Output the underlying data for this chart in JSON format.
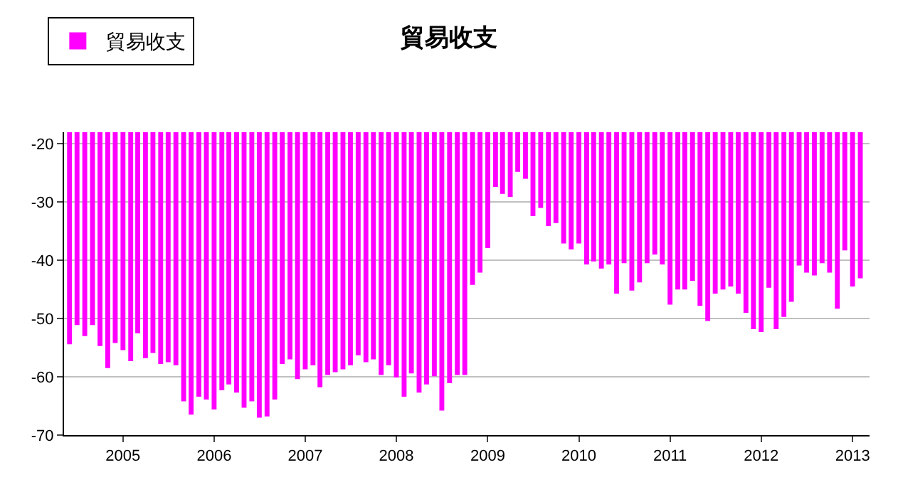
{
  "chart_data": {
    "type": "bar",
    "title": "貿易收支",
    "series": [
      {
        "name": "貿易收支",
        "color": "#ff00ff",
        "values": [
          -54.4,
          -51.1,
          -53.0,
          -51.1,
          -54.7,
          -58.5,
          -54.2,
          -55.4,
          -57.3,
          -52.5,
          -56.8,
          -55.9,
          -57.8,
          -57.5,
          -58.0,
          -64.2,
          -66.5,
          -63.4,
          -63.9,
          -65.6,
          -62.3,
          -61.3,
          -62.7,
          -65.3,
          -64.2,
          -67.0,
          -66.8,
          -63.9,
          -57.8,
          -57.0,
          -60.4,
          -58.7,
          -58.0,
          -61.8,
          -59.7,
          -59.2,
          -58.7,
          -58.0,
          -56.3,
          -57.5,
          -57.0,
          -59.7,
          -58.0,
          -60.1,
          -63.4,
          -59.4,
          -62.7,
          -61.3,
          -59.9,
          -65.8,
          -61.1,
          -59.7,
          -59.7,
          -44.2,
          -42.1,
          -37.9,
          -27.4,
          -28.6,
          -29.1,
          -24.8,
          -26.0,
          -32.4,
          -31.0,
          -34.1,
          -33.6,
          -37.1,
          -38.1,
          -37.1,
          -40.7,
          -40.2,
          -41.4,
          -40.7,
          -45.7,
          -40.5,
          -45.2,
          -43.8,
          -40.5,
          -39.0,
          -40.7,
          -47.6,
          -45.0,
          -45.0,
          -43.5,
          -47.8,
          -50.4,
          -45.7,
          -45.0,
          -44.5,
          -45.7,
          -49.0,
          -51.8,
          -52.3,
          -44.7,
          -51.8,
          -49.7,
          -47.1,
          -40.9,
          -42.1,
          -42.6,
          -40.5,
          -42.1,
          -48.3,
          -38.3,
          -44.5,
          -43.1
        ]
      }
    ],
    "x": [
      "2004-06",
      "2004-07",
      "2004-08",
      "2004-09",
      "2004-10",
      "2004-11",
      "2004-12",
      "2005-01",
      "2005-02",
      "2005-03",
      "2005-04",
      "2005-05",
      "2005-06",
      "2005-07",
      "2005-08",
      "2005-09",
      "2005-10",
      "2005-11",
      "2005-12",
      "2006-01",
      "2006-02",
      "2006-03",
      "2006-04",
      "2006-05",
      "2006-06",
      "2006-07",
      "2006-08",
      "2006-09",
      "2006-10",
      "2006-11",
      "2006-12",
      "2007-01",
      "2007-02",
      "2007-03",
      "2007-04",
      "2007-05",
      "2007-06",
      "2007-07",
      "2007-08",
      "2007-09",
      "2007-10",
      "2007-11",
      "2007-12",
      "2008-01",
      "2008-02",
      "2008-03",
      "2008-04",
      "2008-05",
      "2008-06",
      "2008-07",
      "2008-08",
      "2008-09",
      "2008-10",
      "2008-11",
      "2008-12",
      "2009-01",
      "2009-02",
      "2009-03",
      "2009-04",
      "2009-05",
      "2009-06",
      "2009-07",
      "2009-08",
      "2009-09",
      "2009-10",
      "2009-11",
      "2009-12",
      "2010-01",
      "2010-02",
      "2010-03",
      "2010-04",
      "2010-05",
      "2010-06",
      "2010-07",
      "2010-08",
      "2010-09",
      "2010-10",
      "2010-11",
      "2010-12",
      "2011-01",
      "2011-02",
      "2011-03",
      "2011-04",
      "2011-05",
      "2011-06",
      "2011-07",
      "2011-08",
      "2011-09",
      "2011-10",
      "2011-11",
      "2011-12",
      "2012-01",
      "2012-02",
      "2012-03",
      "2012-04",
      "2012-05",
      "2012-06",
      "2012-07",
      "2012-08",
      "2012-09",
      "2012-10",
      "2012-11",
      "2012-12",
      "2013-01",
      "2013-02"
    ],
    "xlim": [
      "2004-05-10",
      "2013-03-10"
    ],
    "xticks": [
      "2005",
      "2006",
      "2007",
      "2008",
      "2009",
      "2010",
      "2011",
      "2012",
      "2013"
    ],
    "ylim": [
      -70,
      -18
    ],
    "yticks": [
      -70,
      -60,
      -50,
      -40,
      -30,
      -20
    ],
    "grid": "y",
    "legend": "top left"
  }
}
